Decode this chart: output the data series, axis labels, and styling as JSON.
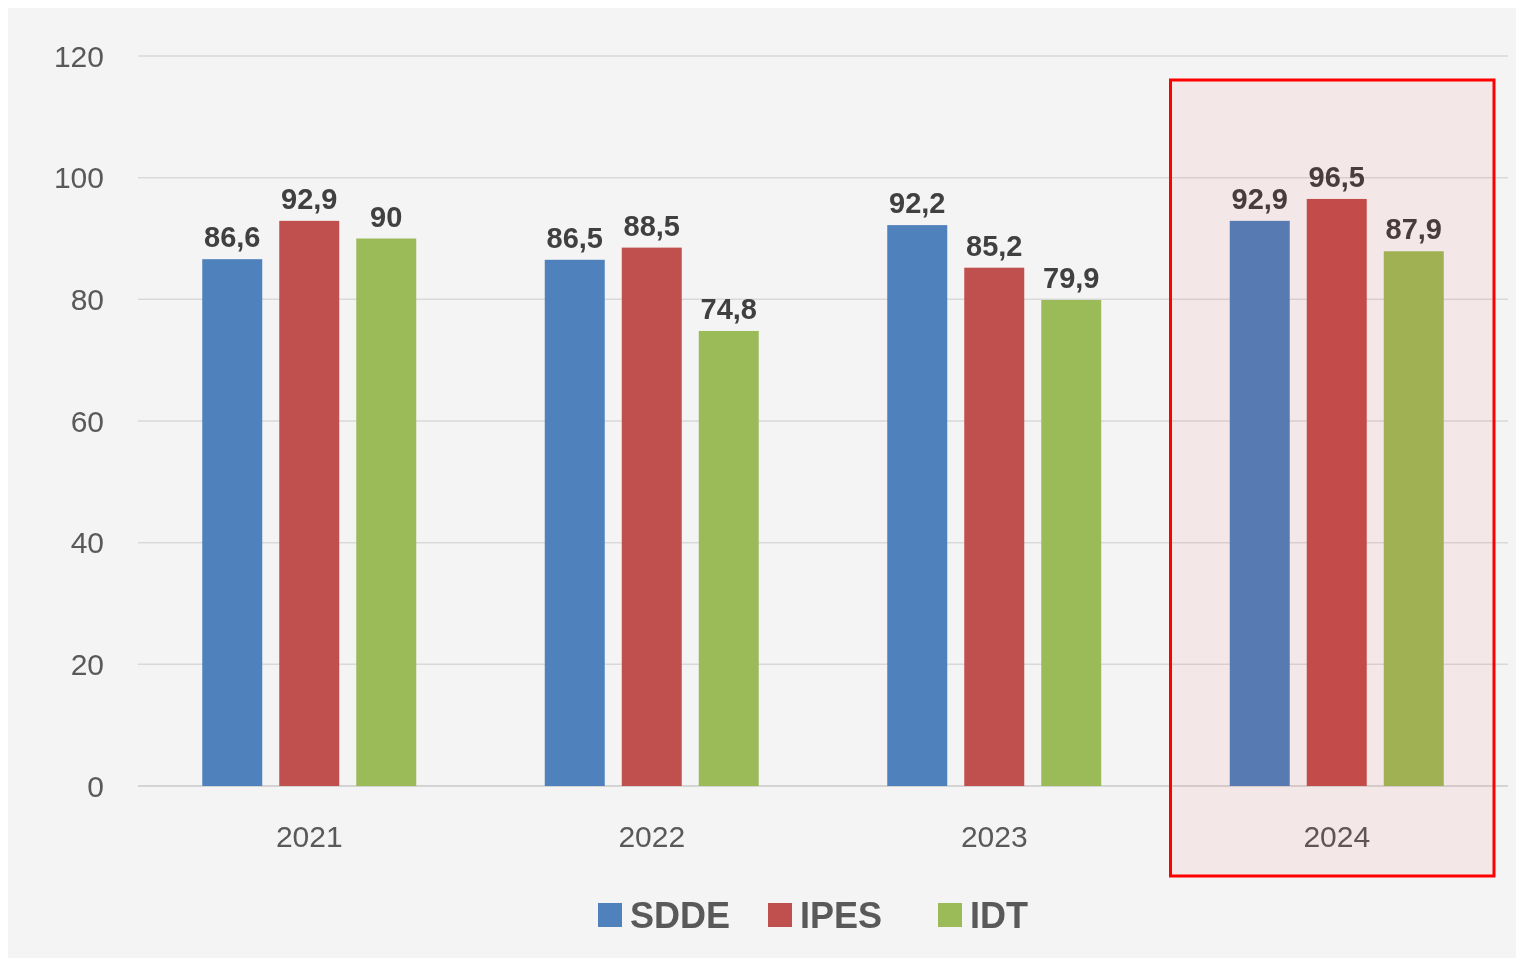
{
  "chart_data": {
    "type": "bar",
    "categories": [
      "2021",
      "2022",
      "2023",
      "2024"
    ],
    "series": [
      {
        "name": "SDDE",
        "color": "#4f81bd",
        "values": [
          86.6,
          86.5,
          92.2,
          92.9
        ],
        "value_labels": [
          "86,6",
          "86,5",
          "92,2",
          "92,9"
        ]
      },
      {
        "name": "IPES",
        "color": "#c0504d",
        "values": [
          92.9,
          88.5,
          85.2,
          96.5
        ],
        "value_labels": [
          "92,9",
          "88,5",
          "85,2",
          "96,5"
        ]
      },
      {
        "name": "IDT",
        "color": "#9bbb59",
        "values": [
          90,
          74.8,
          79.9,
          87.9
        ],
        "value_labels": [
          "90",
          "74,8",
          "79,9",
          "87,9"
        ]
      }
    ],
    "ylim": [
      0,
      120
    ],
    "yticks": [
      0,
      20,
      40,
      60,
      80,
      100,
      120
    ],
    "grid": "y",
    "legend": "bottom",
    "bands": [
      {
        "axis": "x",
        "from": "2024",
        "to": "2024",
        "color": "#ff0000"
      }
    ]
  }
}
